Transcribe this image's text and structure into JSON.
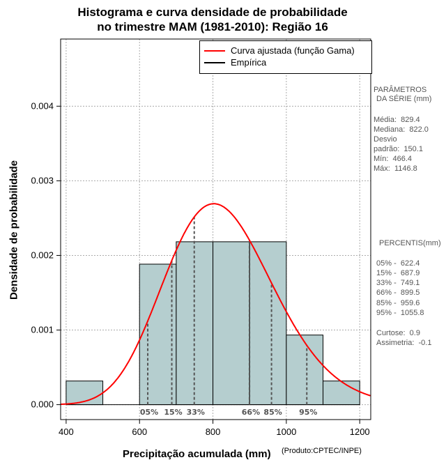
{
  "title_line1": "Histograma e curva densidade de probabilidade",
  "title_line2": "no trimestre MAM (1981-2010): Região 16",
  "legend": {
    "fitted": "Curva ajustada (função Gama)",
    "empirical": "Empírica",
    "fitted_color": "#ff0000",
    "empirical_color": "#000000"
  },
  "params": {
    "heading1": "PARÂMETROS",
    "heading2": "DA SÉRIE (mm)",
    "media": "Média:  829.4",
    "mediana": "Mediana:  822.0",
    "desvio": "Desvio",
    "padrao": "padrão:  150.1",
    "min": "Mín:  466.4",
    "max": "Máx:  1146.8"
  },
  "percentis": {
    "heading": "PERCENTIS(mm)",
    "p05": "05% -  622.4",
    "p15": "15% -  687.9",
    "p33": "33% -  749.1",
    "p66": "66% -  899.5",
    "p85": "85% -  959.6",
    "p95": "95% -  1055.8",
    "curtose": "Curtose:  0.9",
    "assimetria": "Assimetria:  -0.1"
  },
  "credit": "(Produto:CPTEC/INPE)",
  "chart_data": {
    "type": "bar",
    "title": "Histograma e curva densidade de probabilidade no trimestre MAM (1981-2010): Região 16",
    "xlabel": "Precipitação acumulada (mm)",
    "ylabel": "Densidade de probabilidade",
    "xlim": [
      385,
      1230
    ],
    "ylim": [
      -0.0002,
      0.0049
    ],
    "xticks": [
      400,
      600,
      800,
      1000,
      1200
    ],
    "yticks": [
      0.0,
      0.001,
      0.002,
      0.003,
      0.004
    ],
    "ytick_labels": [
      "0.000",
      "0.001",
      "0.002",
      "0.003",
      "0.004"
    ],
    "grid": true,
    "bar_color": "#b5cecf",
    "bins": [
      {
        "start": 400,
        "end": 500,
        "density": 0.000317
      },
      {
        "start": 500,
        "end": 600,
        "density": 0.0
      },
      {
        "start": 600,
        "end": 700,
        "density": 0.001883
      },
      {
        "start": 700,
        "end": 800,
        "density": 0.002183
      },
      {
        "start": 800,
        "end": 900,
        "density": 0.002183
      },
      {
        "start": 900,
        "end": 1000,
        "density": 0.002183
      },
      {
        "start": 1000,
        "end": 1100,
        "density": 0.000933
      },
      {
        "start": 1100,
        "end": 1200,
        "density": 0.000317
      }
    ],
    "fitted_curve": {
      "distribution": "Gamma",
      "shape": 30.5,
      "scale": 27.2
    },
    "percentiles": [
      {
        "label": "05%",
        "value": 622.4
      },
      {
        "label": "15%",
        "value": 687.9
      },
      {
        "label": "33%",
        "value": 749.1
      },
      {
        "label": "66%",
        "value": 899.5
      },
      {
        "label": "85%",
        "value": 959.6
      },
      {
        "label": "95%",
        "value": 1055.8
      }
    ]
  }
}
